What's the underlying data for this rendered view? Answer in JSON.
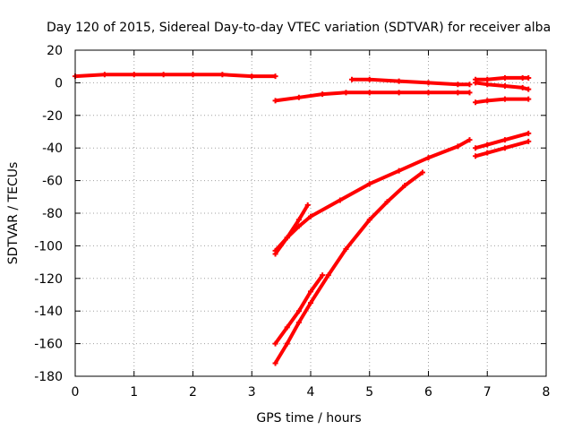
{
  "chart_data": {
    "type": "line",
    "title": "Day 120 of 2015, Sidereal Day-to-day VTEC variation (SDTVAR) for receiver alba",
    "xlabel": "GPS time / hours",
    "ylabel": "SDTVAR / TECUs",
    "xlim": [
      0,
      8
    ],
    "ylim": [
      -180,
      20
    ],
    "xticks": [
      0,
      1,
      2,
      3,
      4,
      5,
      6,
      7,
      8
    ],
    "yticks": [
      20,
      0,
      -20,
      -40,
      -60,
      -80,
      -100,
      -120,
      -140,
      -160,
      -180
    ],
    "xtick_labels": [
      "0",
      "1",
      "2",
      "3",
      "4",
      "5",
      "6",
      "7",
      "8"
    ],
    "ytick_labels": [
      "20",
      "0",
      "-20",
      "-40",
      "-60",
      "-80",
      "-100",
      "-120",
      "-140",
      "-160",
      "-180"
    ],
    "grid": true,
    "legend": "none",
    "color": "#ff0000",
    "series": [
      {
        "x": [
          0.0,
          0.5,
          1.0,
          1.5,
          2.0,
          2.5,
          3.0,
          3.4
        ],
        "y": [
          4,
          5,
          5,
          5,
          5,
          5,
          4,
          4
        ]
      },
      {
        "x": [
          3.4,
          3.8,
          4.2,
          4.6,
          5.0,
          5.5,
          6.0,
          6.5,
          6.7
        ],
        "y": [
          -11,
          -9,
          -7,
          -6,
          -6,
          -6,
          -6,
          -6,
          -6
        ]
      },
      {
        "x": [
          4.7,
          5.0,
          5.5,
          6.0,
          6.5,
          6.7
        ],
        "y": [
          2,
          2,
          1,
          0,
          -1,
          -1
        ]
      },
      {
        "x": [
          6.8,
          7.0,
          7.3,
          7.6,
          7.7
        ],
        "y": [
          0,
          -1,
          -2,
          -3,
          -4
        ]
      },
      {
        "x": [
          6.8,
          7.0,
          7.3,
          7.6,
          7.7
        ],
        "y": [
          2,
          2,
          3,
          3,
          3
        ]
      },
      {
        "x": [
          6.8,
          7.0,
          7.3,
          7.7
        ],
        "y": [
          -12,
          -11,
          -10,
          -10
        ]
      },
      {
        "x": [
          3.4,
          3.6,
          3.8,
          4.0,
          4.5,
          5.0,
          5.5,
          6.0,
          6.5,
          6.7
        ],
        "y": [
          -103,
          -95,
          -88,
          -82,
          -72,
          -62,
          -54,
          -46,
          -39,
          -35
        ]
      },
      {
        "x": [
          3.4,
          3.6,
          3.8,
          3.95
        ],
        "y": [
          -105,
          -95,
          -84,
          -75
        ]
      },
      {
        "x": [
          3.4,
          3.6,
          3.8,
          4.0,
          4.3,
          4.6,
          5.0,
          5.3,
          5.6,
          5.9
        ],
        "y": [
          -172,
          -160,
          -147,
          -135,
          -118,
          -102,
          -84,
          -73,
          -63,
          -55
        ]
      },
      {
        "x": [
          3.4,
          3.6,
          3.8,
          4.0,
          4.2
        ],
        "y": [
          -160,
          -150,
          -140,
          -128,
          -118
        ]
      },
      {
        "x": [
          6.8,
          7.0,
          7.3,
          7.7
        ],
        "y": [
          -40,
          -38,
          -35,
          -31
        ]
      },
      {
        "x": [
          6.8,
          7.0,
          7.3,
          7.7
        ],
        "y": [
          -45,
          -43,
          -40,
          -36
        ]
      }
    ]
  }
}
